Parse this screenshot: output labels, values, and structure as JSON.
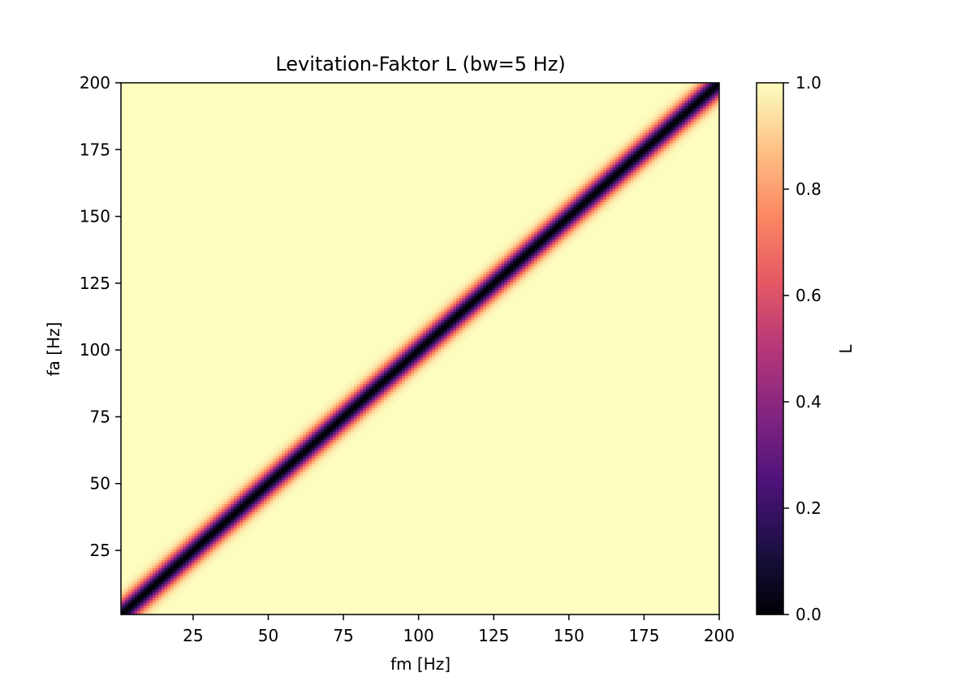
{
  "chart_data": {
    "type": "heatmap",
    "title": "Levitation-Faktor L (bw=5 Hz)",
    "xlabel": "fm [Hz]",
    "ylabel": "fa [Hz]",
    "xlim": [
      1,
      200
    ],
    "ylim": [
      1,
      200
    ],
    "x_ticks": [
      25,
      50,
      75,
      100,
      125,
      150,
      175,
      200
    ],
    "y_ticks": [
      25,
      50,
      75,
      100,
      125,
      150,
      175,
      200
    ],
    "grid_resolution": {
      "fm_step": 1,
      "fa_step": 1
    },
    "function": "L = 1 - exp(-((fm - fa)/bw)^2)",
    "bandwidth_hz": 5,
    "colormap": "magma",
    "colormap_stops": [
      "#000004",
      "#1c1044",
      "#4f127b",
      "#812581",
      "#b5367a",
      "#e55964",
      "#fb8761",
      "#fec287",
      "#fcfdbf"
    ],
    "colorbar": {
      "label": "L",
      "range": [
        0.0,
        1.0
      ],
      "ticks": [
        "0.0",
        "0.2",
        "0.4",
        "0.6",
        "0.8",
        "1.0"
      ]
    }
  }
}
